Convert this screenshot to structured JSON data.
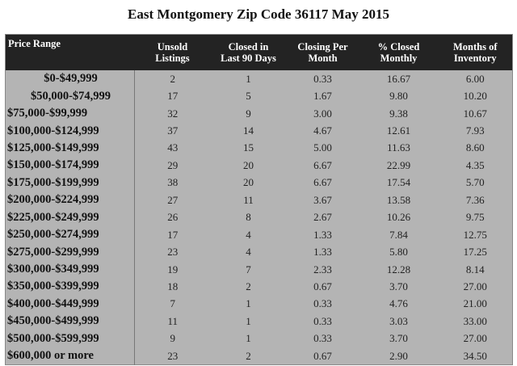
{
  "title": "East Montgomery Zip Code 36117 May 2015",
  "chart_data": {
    "type": "table",
    "title": "East Montgomery Zip Code 36117 May 2015",
    "columns": [
      [
        "Price Range"
      ],
      [
        "Unsold",
        "Listings"
      ],
      [
        "Closed in",
        "Last 90 Days"
      ],
      [
        "Closing Per",
        "Month"
      ],
      [
        "% Closed",
        "Monthly"
      ],
      [
        "Months of",
        "Inventory"
      ]
    ],
    "rows": [
      [
        "$0-$49,999",
        "2",
        "1",
        "0.33",
        "16.67",
        "6.00"
      ],
      [
        "$50,000-$74,999",
        "17",
        "5",
        "1.67",
        "9.80",
        "10.20"
      ],
      [
        "$75,000-$99,999",
        "32",
        "9",
        "3.00",
        "9.38",
        "10.67"
      ],
      [
        "$100,000-$124,999",
        "37",
        "14",
        "4.67",
        "12.61",
        "7.93"
      ],
      [
        "$125,000-$149,999",
        "43",
        "15",
        "5.00",
        "11.63",
        "8.60"
      ],
      [
        "$150,000-$174,999",
        "29",
        "20",
        "6.67",
        "22.99",
        "4.35"
      ],
      [
        "$175,000-$199,999",
        "38",
        "20",
        "6.67",
        "17.54",
        "5.70"
      ],
      [
        "$200,000-$224,999",
        "27",
        "11",
        "3.67",
        "13.58",
        "7.36"
      ],
      [
        "$225,000-$249,999",
        "26",
        "8",
        "2.67",
        "10.26",
        "9.75"
      ],
      [
        "$250,000-$274,999",
        "17",
        "4",
        "1.33",
        "7.84",
        "12.75"
      ],
      [
        "$275,000-$299,999",
        "23",
        "4",
        "1.33",
        "5.80",
        "17.25"
      ],
      [
        "$300,000-$349,999",
        "19",
        "7",
        "2.33",
        "12.28",
        "8.14"
      ],
      [
        "$350,000-$399,999",
        "18",
        "2",
        "0.67",
        "3.70",
        "27.00"
      ],
      [
        "$400,000-$449,999",
        "7",
        "1",
        "0.33",
        "4.76",
        "21.00"
      ],
      [
        "$450,000-$499,999",
        "11",
        "1",
        "0.33",
        "3.03",
        "33.00"
      ],
      [
        "$500,000-$599,999",
        "9",
        "1",
        "0.33",
        "3.70",
        "27.00"
      ],
      [
        "$600,000 or more",
        "23",
        "2",
        "0.67",
        "2.90",
        "34.50"
      ]
    ],
    "colors": {
      "header_bg": "#232323",
      "header_text": "#ffffff",
      "body_bg": "#b4b4b4"
    }
  }
}
